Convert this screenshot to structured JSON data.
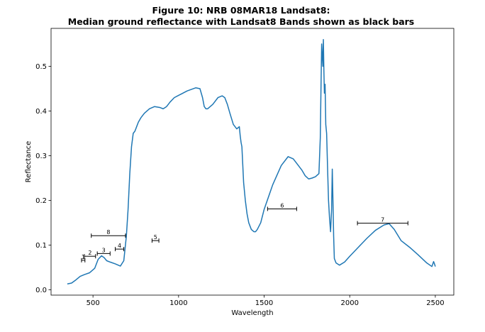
{
  "chart_data": {
    "type": "line",
    "title_line1": "Figure 10: NRB 08MAR18  Landsat8:",
    "title_line2": "Median ground reflectance with Landsat8 Bands shown as black bars",
    "xlabel": "Wavelength",
    "ylabel": "Reflectance",
    "xlim": [
      255,
      2608
    ],
    "ylim": [
      -0.012,
      0.585
    ],
    "xticks": [
      500,
      1000,
      1500,
      2000,
      2500
    ],
    "xtick_labels": [
      "500",
      "1000",
      "1500",
      "2000",
      "2500"
    ],
    "yticks": [
      0.0,
      0.1,
      0.2,
      0.3,
      0.4,
      0.5
    ],
    "ytick_labels": [
      "0.0",
      "0.1",
      "0.2",
      "0.3",
      "0.4",
      "0.5"
    ],
    "grid": false,
    "line_color": "#1f77b4",
    "band_color": "#000000",
    "series": [
      {
        "x": [
          350,
          375,
          400,
          425,
          450,
          480,
          510,
          530,
          550,
          565,
          580,
          600,
          630,
          660,
          680,
          695,
          705,
          715,
          725,
          735,
          745,
          755,
          765,
          780,
          800,
          830,
          860,
          890,
          910,
          930,
          950,
          975,
          1000,
          1050,
          1100,
          1125,
          1140,
          1150,
          1160,
          1170,
          1200,
          1230,
          1255,
          1270,
          1285,
          1300,
          1320,
          1340,
          1355,
          1360,
          1365,
          1370,
          1375,
          1380,
          1390,
          1400,
          1410,
          1425,
          1440,
          1450,
          1460,
          1480,
          1500,
          1550,
          1600,
          1640,
          1670,
          1690,
          1720,
          1740,
          1760,
          1780,
          1800,
          1820,
          1828,
          1832,
          1836,
          1840,
          1843,
          1846,
          1849,
          1852,
          1856,
          1860,
          1865,
          1870,
          1876,
          1882,
          1888,
          1894,
          1898,
          1902,
          1906,
          1910,
          1920,
          1940,
          1970,
          2000,
          2050,
          2100,
          2150,
          2200,
          2230,
          2260,
          2300,
          2350,
          2400,
          2450,
          2480,
          2490,
          2495,
          2500
        ],
        "y": [
          0.013,
          0.015,
          0.022,
          0.03,
          0.034,
          0.038,
          0.048,
          0.068,
          0.076,
          0.072,
          0.065,
          0.062,
          0.058,
          0.053,
          0.065,
          0.12,
          0.18,
          0.26,
          0.32,
          0.35,
          0.355,
          0.365,
          0.375,
          0.385,
          0.395,
          0.405,
          0.41,
          0.408,
          0.405,
          0.41,
          0.42,
          0.43,
          0.435,
          0.445,
          0.452,
          0.45,
          0.43,
          0.41,
          0.405,
          0.405,
          0.415,
          0.43,
          0.434,
          0.43,
          0.415,
          0.395,
          0.37,
          0.36,
          0.365,
          0.345,
          0.33,
          0.32,
          0.28,
          0.24,
          0.2,
          0.17,
          0.15,
          0.135,
          0.13,
          0.13,
          0.135,
          0.15,
          0.18,
          0.235,
          0.278,
          0.298,
          0.293,
          0.283,
          0.268,
          0.255,
          0.248,
          0.25,
          0.253,
          0.26,
          0.34,
          0.45,
          0.55,
          0.52,
          0.5,
          0.56,
          0.49,
          0.44,
          0.46,
          0.37,
          0.35,
          0.28,
          0.2,
          0.16,
          0.13,
          0.18,
          0.27,
          0.2,
          0.12,
          0.07,
          0.06,
          0.055,
          0.062,
          0.075,
          0.095,
          0.115,
          0.133,
          0.145,
          0.148,
          0.135,
          0.11,
          0.095,
          0.078,
          0.06,
          0.052,
          0.063,
          0.058,
          0.052
        ]
      }
    ],
    "bands": [
      {
        "label": "1",
        "start": 433,
        "end": 453,
        "y": 0.066
      },
      {
        "label": "2",
        "start": 450,
        "end": 515,
        "y": 0.075
      },
      {
        "label": "3",
        "start": 525,
        "end": 600,
        "y": 0.081
      },
      {
        "label": "4",
        "start": 630,
        "end": 680,
        "y": 0.091
      },
      {
        "label": "5",
        "start": 845,
        "end": 885,
        "y": 0.11
      },
      {
        "label": "6",
        "start": 1560,
        "end": 1660,
        "y": 0.181,
        "display_start": 1520,
        "display_end": 1690
      },
      {
        "label": "7",
        "start": 2107,
        "end": 2294,
        "y": 0.149,
        "display_start": 2045,
        "display_end": 2340
      },
      {
        "label": "8",
        "start": 503,
        "end": 676,
        "y": 0.121,
        "display_start": 490,
        "display_end": 690
      }
    ]
  }
}
